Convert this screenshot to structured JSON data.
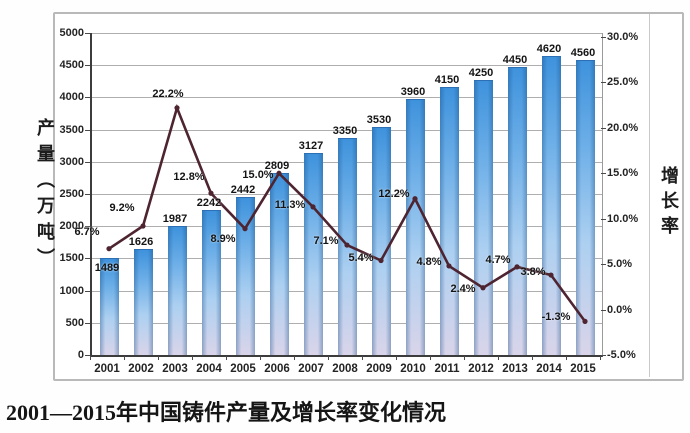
{
  "caption": "2001—2015年中国铸件产量及增长率变化情况",
  "chart_data": {
    "type": "combo",
    "title": "",
    "categories": [
      "2001",
      "2002",
      "2003",
      "2004",
      "2005",
      "2006",
      "2007",
      "2008",
      "2009",
      "2010",
      "2011",
      "2012",
      "2013",
      "2014",
      "2015"
    ],
    "series": [
      {
        "name": "铸件产量",
        "type": "bar",
        "axis": "left",
        "values": [
          1489,
          1626,
          1987,
          2242,
          2442,
          2809,
          3127,
          3350,
          3530,
          3960,
          4150,
          4250,
          4450,
          4620,
          4560
        ]
      },
      {
        "name": "增长率",
        "type": "line",
        "axis": "right",
        "values": [
          6.7,
          9.2,
          22.2,
          12.8,
          8.9,
          15.0,
          11.3,
          7.1,
          5.4,
          12.2,
          4.8,
          2.4,
          4.7,
          3.8,
          -1.3
        ]
      }
    ],
    "left_axis": {
      "title": "产量（万吨）",
      "min": 0,
      "max": 5000,
      "step": 500
    },
    "right_axis": {
      "title": "增长率",
      "min": -5,
      "max": 30,
      "step": 5,
      "unit": "%"
    },
    "grid": true,
    "legend": "none",
    "colors": {
      "bar_top": "#3e92dc",
      "bar_mid": "#add0f1",
      "bar_bottom": "#d9d4e9",
      "line": "#4d2430",
      "grid": "#aeaeae",
      "text": "#242424"
    }
  }
}
